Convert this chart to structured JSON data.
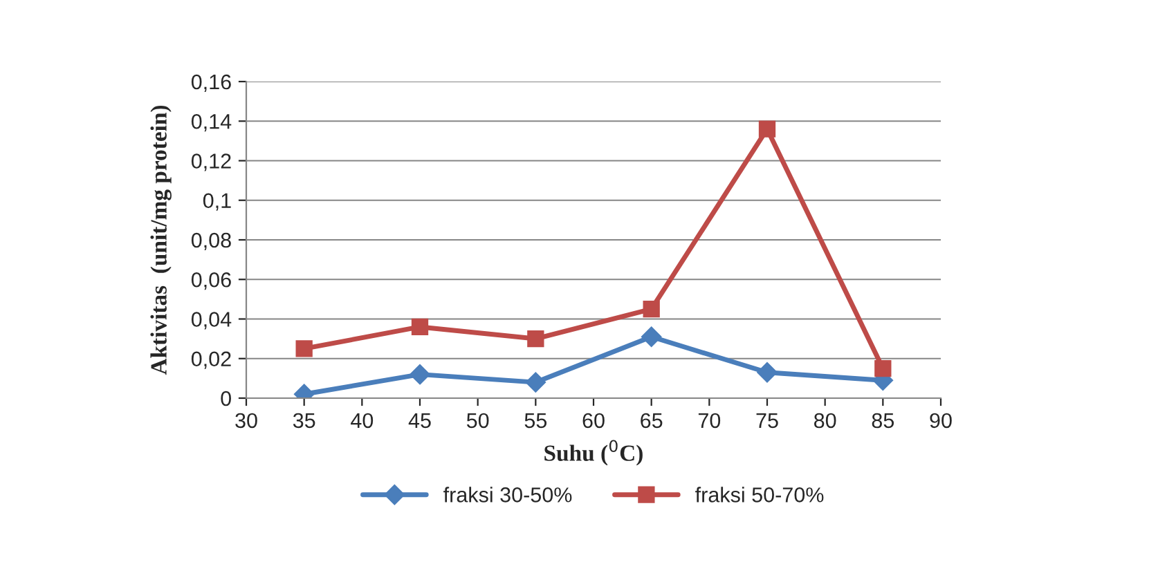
{
  "chart_data": {
    "type": "line",
    "xlabel": "Suhu ($^{0}$C)",
    "ylabel": "Aktivitas  (unit/mg protein)",
    "x": [
      35,
      45,
      55,
      65,
      75,
      85
    ],
    "series": [
      {
        "name": "fraksi 30-50%",
        "color": "#4a7ebb",
        "marker": "diamond",
        "values": [
          0.002,
          0.012,
          0.008,
          0.031,
          0.013,
          0.009
        ]
      },
      {
        "name": "fraksi 50-70%",
        "color": "#be4b48",
        "marker": "square",
        "values": [
          0.025,
          0.036,
          0.03,
          0.045,
          0.136,
          0.015
        ]
      }
    ],
    "xlim": [
      30,
      90
    ],
    "xticks": [
      30,
      35,
      40,
      45,
      50,
      55,
      60,
      65,
      70,
      75,
      80,
      85,
      90
    ],
    "ylim": [
      0,
      0.16
    ],
    "yticks": [
      {
        "value": 0,
        "label": "0"
      },
      {
        "value": 0.02,
        "label": "0,02"
      },
      {
        "value": 0.04,
        "label": "0,04"
      },
      {
        "value": 0.06,
        "label": "0,06"
      },
      {
        "value": 0.08,
        "label": "0,08"
      },
      {
        "value": 0.1,
        "label": "0,1"
      },
      {
        "value": 0.12,
        "label": "0,12"
      },
      {
        "value": 0.14,
        "label": "0,14"
      },
      {
        "value": 0.16,
        "label": "0,16"
      }
    ],
    "grid": "y",
    "legend": "bottom",
    "line_style": "solid"
  }
}
